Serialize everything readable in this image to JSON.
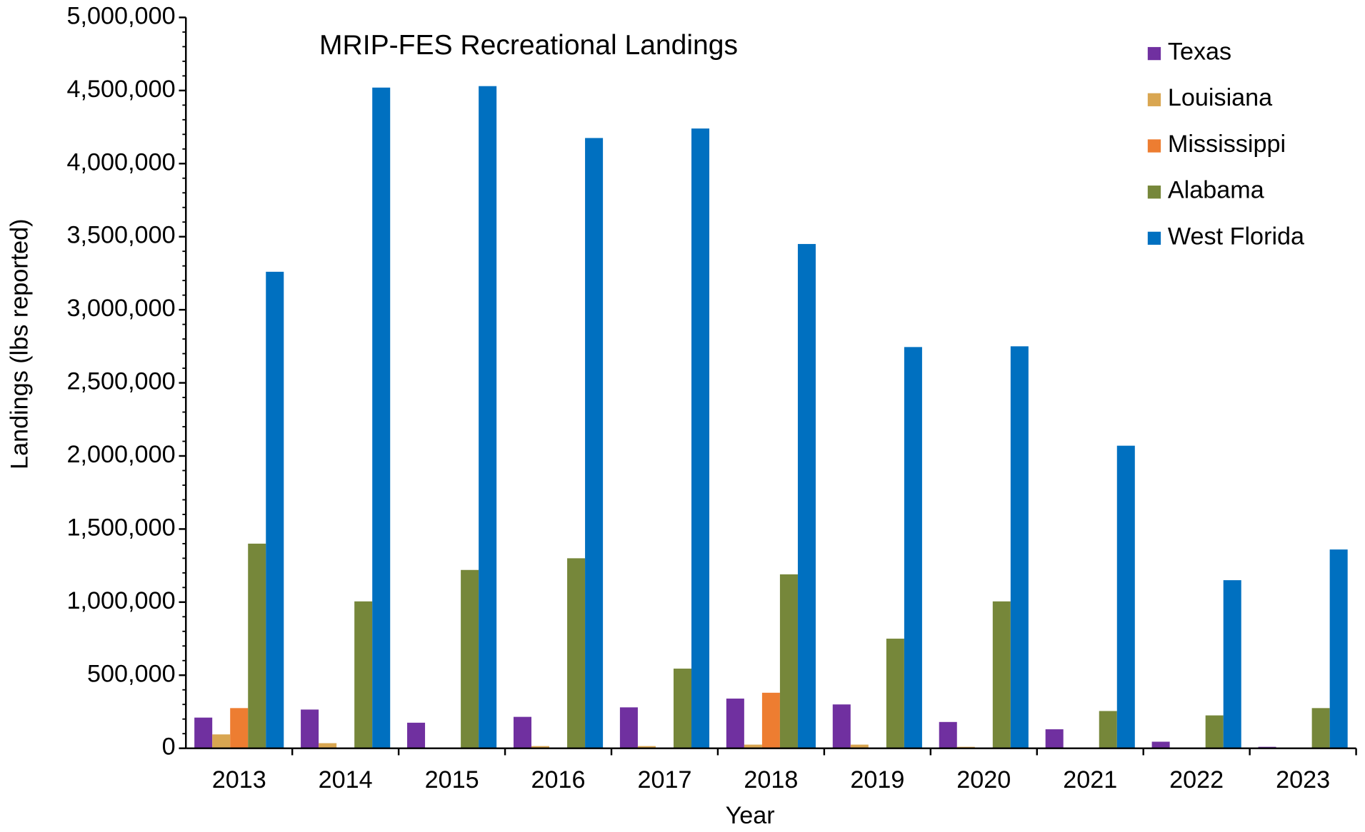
{
  "chart_data": {
    "type": "bar",
    "annotation": "MRIP-FES Recreational Landings",
    "xlabel": "Year",
    "ylabel": "Landings (lbs reported)",
    "categories": [
      "2013",
      "2014",
      "2015",
      "2016",
      "2017",
      "2018",
      "2019",
      "2020",
      "2021",
      "2022",
      "2023"
    ],
    "series": [
      {
        "name": "Texas",
        "color": "#7030a0",
        "values": [
          210000,
          265000,
          175000,
          215000,
          280000,
          340000,
          300000,
          180000,
          130000,
          45000,
          10000
        ]
      },
      {
        "name": "Louisiana",
        "color": "#d9a651",
        "values": [
          95000,
          35000,
          5000,
          15000,
          15000,
          25000,
          25000,
          10000,
          3000,
          3000,
          3000
        ]
      },
      {
        "name": "Mississippi",
        "color": "#ed7d31",
        "values": [
          275000,
          0,
          0,
          0,
          0,
          380000,
          0,
          0,
          0,
          0,
          0
        ]
      },
      {
        "name": "Alabama",
        "color": "#76873a",
        "values": [
          1400000,
          1005000,
          1220000,
          1300000,
          545000,
          1190000,
          750000,
          1005000,
          255000,
          225000,
          275000
        ]
      },
      {
        "name": "West Florida",
        "color": "#0070c0",
        "values": [
          3260000,
          4520000,
          4530000,
          4175000,
          4240000,
          3450000,
          2745000,
          2750000,
          2070000,
          1150000,
          1360000
        ]
      }
    ],
    "ylim": [
      0,
      5000000
    ],
    "yticks": [
      {
        "value": 0,
        "label": "0"
      },
      {
        "value": 500000,
        "label": "500,000"
      },
      {
        "value": 1000000,
        "label": "1,000,000"
      },
      {
        "value": 1500000,
        "label": "1,500,000"
      },
      {
        "value": 2000000,
        "label": "2,000,000"
      },
      {
        "value": 2500000,
        "label": "2,500,000"
      },
      {
        "value": 3000000,
        "label": "3,000,000"
      },
      {
        "value": 3500000,
        "label": "3,500,000"
      },
      {
        "value": 4000000,
        "label": "4,000,000"
      },
      {
        "value": 4500000,
        "label": "4,500,000"
      },
      {
        "value": 5000000,
        "label": "5,000,000"
      }
    ],
    "legend": "upper right"
  }
}
